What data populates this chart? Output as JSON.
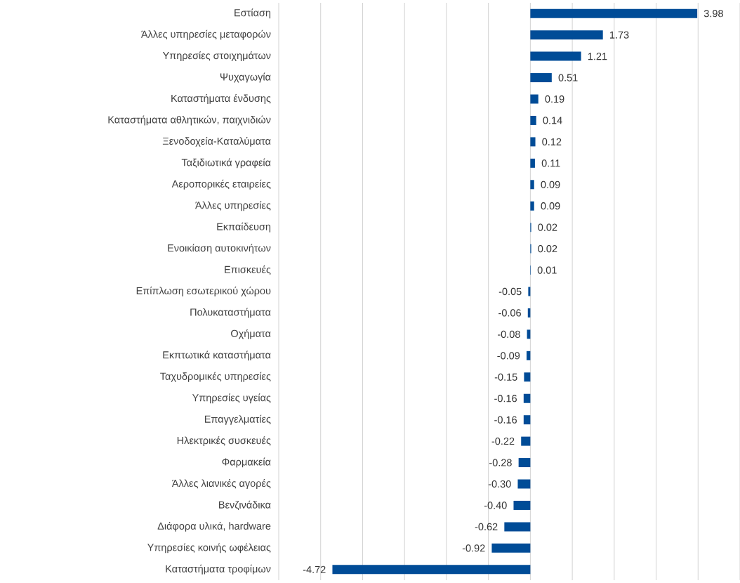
{
  "chart_data": {
    "type": "bar",
    "orientation": "horizontal",
    "color": "#004c97",
    "grid": "x",
    "tick_labels": "y",
    "categories": [
      "Εστίαση",
      "Άλλες υπηρεσίες μεταφορών",
      "Υπηρεσίες στοιχημάτων",
      "Ψυχαγωγία",
      "Καταστήματα ένδυσης",
      "Καταστήματα αθλητικών, παιχνιδιών",
      "Ξενοδοχεία-Καταλύματα",
      "Ταξιδιωτικά γραφεία",
      "Αεροπορικές εταιρείες",
      "Άλλες υπηρεσίες",
      "Εκπαίδευση",
      "Ενοικίαση αυτοκινήτων",
      "Επισκευές",
      "Επίπλωση εσωτερικού χώρου",
      "Πολυκαταστήματα",
      "Οχήματα",
      "Εκπτωτικά καταστήματα",
      "Ταχυδρομικές υπηρεσίες",
      "Υπηρεσίες υγείας",
      "Επαγγελματίες",
      "Ηλεκτρικές συσκευές",
      "Φαρμακεία",
      "Άλλες λιανικές αγορές",
      "Βενζινάδικα",
      "Διάφορα υλικά, hardware",
      "Υπηρεσίες κοινής ωφέλειας",
      "Καταστήματα τροφίμων"
    ],
    "values": [
      3.98,
      1.73,
      1.21,
      0.51,
      0.19,
      0.14,
      0.12,
      0.11,
      0.09,
      0.09,
      0.02,
      0.02,
      0.01,
      -0.05,
      -0.06,
      -0.08,
      -0.09,
      -0.15,
      -0.16,
      -0.16,
      -0.22,
      -0.28,
      -0.3,
      -0.4,
      -0.62,
      -0.92,
      -4.72
    ],
    "value_labels": [
      "3.98",
      "1.73",
      "1.21",
      "0.51",
      "0.19",
      "0.14",
      "0.12",
      "0.11",
      "0.09",
      "0.09",
      "0.02",
      "0.02",
      "0.01",
      "-0.05",
      "-0.06",
      "-0.08",
      "-0.09",
      "-0.15",
      "-0.16",
      "-0.16",
      "-0.22",
      "-0.28",
      "-0.30",
      "-0.40",
      "-0.62",
      "-0.92",
      "-4.72"
    ],
    "xlim": [
      -6,
      5
    ],
    "xticks": [
      {
        "value": -6,
        "label": null
      },
      {
        "value": -5,
        "label": null
      },
      {
        "value": -4,
        "label": null
      },
      {
        "value": -3,
        "label": null
      },
      {
        "value": -2,
        "label": null
      },
      {
        "value": -1,
        "label": null
      },
      {
        "value": 0,
        "label": null
      },
      {
        "value": 1,
        "label": null
      },
      {
        "value": 2,
        "label": null
      },
      {
        "value": 3,
        "label": null
      },
      {
        "value": 4,
        "label": null
      },
      {
        "value": 5,
        "label": null
      }
    ]
  }
}
